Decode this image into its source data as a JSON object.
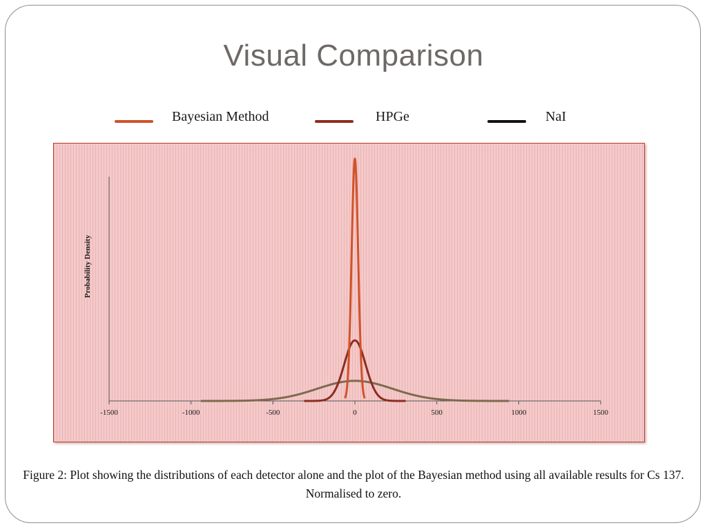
{
  "slide": {
    "title": "Visual Comparison",
    "caption": "Figure 2: Plot showing the distributions of each detector alone and the plot of the Bayesian method using all available results for Cs 137. Normalised to zero."
  },
  "legend": [
    {
      "label": "Bayesian Method",
      "color": "#d0522a"
    },
    {
      "label": "HPGe",
      "color": "#8c2d20"
    },
    {
      "label": "NaI",
      "color": "#111111"
    }
  ],
  "colors": {
    "plot_background": "#f4caca",
    "plot_border": "#b53a2b",
    "nai_curve": "#7d6a4f",
    "axis": "#555555"
  },
  "chart_data": {
    "type": "line",
    "title": "",
    "xlabel": "",
    "ylabel": "Probability Density",
    "xlim": [
      -1500,
      1500
    ],
    "ylim": [
      0,
      1
    ],
    "xticks": [
      -1500,
      -1000,
      -500,
      0,
      500,
      1000,
      1500
    ],
    "xtick_labels": [
      "-1500",
      "-1000",
      "-500",
      "0",
      "500",
      "1000",
      "1500"
    ],
    "grid": false,
    "series": [
      {
        "name": "Bayesian Method",
        "shape": "normal",
        "mean": 0,
        "sigma": 20,
        "peak": 1.0,
        "x_range": [
          -60,
          60
        ]
      },
      {
        "name": "HPGe",
        "shape": "normal",
        "mean": 0,
        "sigma": 65,
        "peak": 0.25,
        "x_range": [
          -310,
          310
        ]
      },
      {
        "name": "NaI",
        "shape": "normal",
        "mean": 0,
        "sigma": 230,
        "peak": 0.083,
        "x_range": [
          -940,
          940
        ]
      }
    ]
  }
}
